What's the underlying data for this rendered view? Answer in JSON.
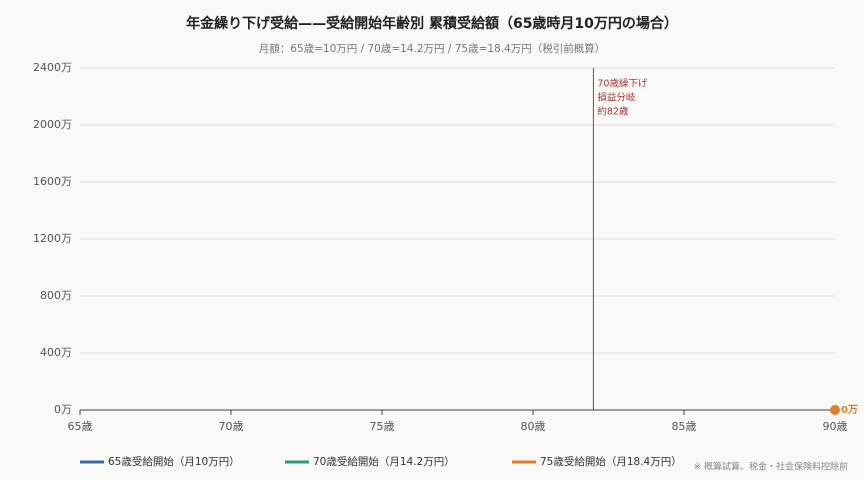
{
  "chart_data": {
    "type": "line",
    "title": "年金繰り下げ受給——受給開始年齢別 累積受給額（65歳時月10万円の場合）",
    "subtitle": "月額：65歳=10万円 / 70歳=14.2万円 / 75歳=18.4万円（税引前概算）",
    "x": [
      90
    ],
    "series": [
      {
        "name": "65歳受給開始（月10万円）",
        "color": "#3d6b9e",
        "values": [
          null
        ]
      },
      {
        "name": "70歳受給開始（月14.2万円）",
        "color": "#2e9b80",
        "values": [
          null
        ]
      },
      {
        "name": "75歳受給開始（月18.4万円）",
        "color": "#e07c2c",
        "values": [
          0
        ],
        "value_labels": [
          "0万"
        ]
      }
    ],
    "xlim": [
      65,
      90
    ],
    "xticks": [
      {
        "value": 65,
        "label": "65歳"
      },
      {
        "value": 70,
        "label": "70歳"
      },
      {
        "value": 75,
        "label": "75歳"
      },
      {
        "value": 80,
        "label": "80歳"
      },
      {
        "value": 85,
        "label": "85歳"
      },
      {
        "value": 90,
        "label": "90歳"
      }
    ],
    "ylim": [
      0,
      2400
    ],
    "yticks": [
      {
        "value": 0,
        "label": "0万"
      },
      {
        "value": 400,
        "label": "400万"
      },
      {
        "value": 800,
        "label": "800万"
      },
      {
        "value": 1200,
        "label": "1200万"
      },
      {
        "value": 1600,
        "label": "1600万"
      },
      {
        "value": 2000,
        "label": "2000万"
      },
      {
        "value": 2400,
        "label": "2400万"
      }
    ],
    "grid": true,
    "annotation": {
      "x": 82,
      "color": "#a33a3a",
      "lines": [
        "70歳繰下げ",
        "損益分岐",
        "約82歳"
      ]
    },
    "legend": "bottom",
    "footnote": "※ 概算試算。税金・社会保険料控除前"
  }
}
